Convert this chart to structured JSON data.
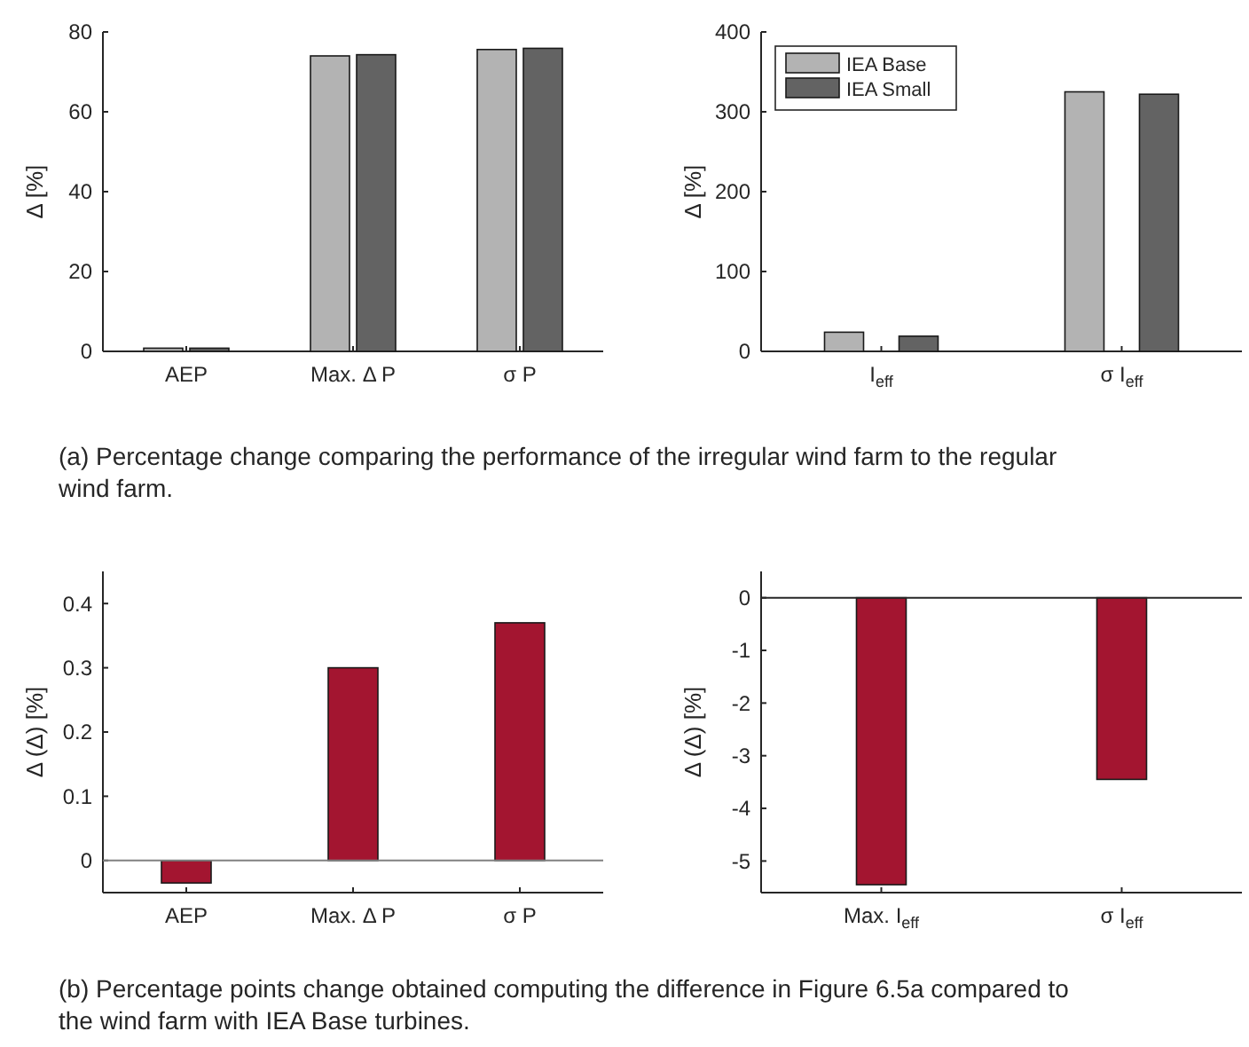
{
  "chart_data": [
    {
      "type": "bar",
      "ylabel": "Δ [%]",
      "categories": [
        "AEP",
        "Max. Δ P",
        "σ P"
      ],
      "ylim": [
        0,
        80
      ],
      "yticks": [
        0,
        20,
        40,
        60,
        80
      ],
      "grid": false,
      "legend": false,
      "series": [
        {
          "color": "#b3b3b3",
          "values": [
            0.8,
            74,
            75.6
          ]
        },
        {
          "color": "#636363",
          "values": [
            0.8,
            74.3,
            75.9
          ]
        }
      ],
      "annotations": [
        "(a) Percentage change comparing the performance of the irregular wind farm to the regular wind farm."
      ]
    },
    {
      "type": "bar",
      "ylabel": "Δ [%]",
      "categories": [
        "I$_{eff}$",
        "σ I$_{eff}$"
      ],
      "ylim": [
        0,
        400
      ],
      "yticks": [
        0,
        100,
        200,
        300,
        400
      ],
      "grid": false,
      "legend": "top left",
      "series": [
        {
          "name": "IEA Base",
          "color": "#b3b3b3",
          "values": [
            24,
            325
          ]
        },
        {
          "name": "IEA Small",
          "color": "#636363",
          "values": [
            19,
            322
          ]
        }
      ]
    },
    {
      "type": "bar",
      "ylabel": "Δ (Δ) [%]",
      "categories": [
        "AEP",
        "Max. Δ P",
        "σ P"
      ],
      "ylim": [
        -0.05,
        0.45
      ],
      "yticks": [
        0,
        0.1,
        0.2,
        0.3,
        0.4
      ],
      "grid": false,
      "color": "#a31530",
      "values": [
        -0.035,
        0.3,
        0.37
      ],
      "ref_lines": [
        {
          "axis": "y",
          "value": 0,
          "color": "#808080"
        }
      ],
      "annotations": [
        "(b) Percentage points change obtained computing the difference in Figure 6.5a compared to the wind farm with IEA Base turbines."
      ]
    },
    {
      "type": "bar",
      "ylabel": "Δ (Δ) [%]",
      "categories": [
        "Max. I$_{eff}$",
        "σ I$_{eff}$"
      ],
      "ylim": [
        -5.6,
        0.5
      ],
      "yticks": [
        -5,
        -4,
        -3,
        -2,
        -1,
        0
      ],
      "grid": false,
      "color": "#a31530",
      "values": [
        -5.45,
        -3.45
      ],
      "ref_lines": [
        {
          "axis": "y",
          "value": 0,
          "color": "#262626"
        }
      ]
    }
  ]
}
